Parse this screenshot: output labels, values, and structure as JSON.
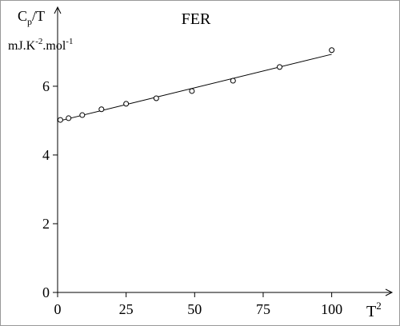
{
  "chart_data": {
    "type": "scatter",
    "title": "FER",
    "y_label": [
      "C",
      "p",
      "/T"
    ],
    "y_units": [
      "mJ.K",
      "-2",
      ".mol",
      "-1"
    ],
    "x_label": [
      "T",
      "2"
    ],
    "x": [
      1,
      4,
      9,
      16,
      25,
      36,
      49,
      64,
      81,
      100
    ],
    "values": [
      5.02,
      5.07,
      5.16,
      5.33,
      5.49,
      5.65,
      5.86,
      6.16,
      6.56,
      7.05
    ],
    "fit": {
      "x": [
        0,
        100
      ],
      "values": [
        4.98,
        6.93
      ]
    },
    "xlim": [
      0,
      122
    ],
    "ylim": [
      0,
      8.3
    ],
    "xticks": [
      0,
      25,
      50,
      75,
      100
    ],
    "yticks": [
      0,
      2,
      4,
      6
    ]
  }
}
